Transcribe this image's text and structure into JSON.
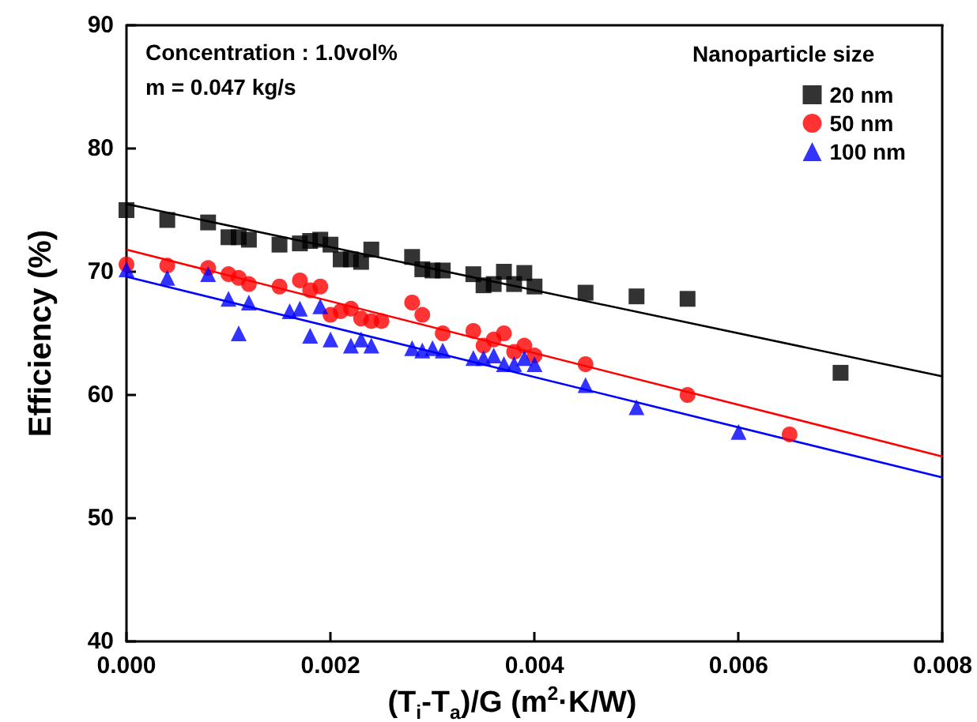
{
  "chart_data": {
    "type": "scatter",
    "xlabel": "(T$_{i}$-T$_{a}$)/G (m$^{2}$·K/W)",
    "ylabel": "Efficiency (%)",
    "legend_title": "Nanoparticle size",
    "annotations": [
      "Concentration : 1.0vol%",
      "m = 0.047 kg/s"
    ],
    "xlim": [
      0,
      0.008
    ],
    "xticks": [
      {
        "value": 0,
        "label": "0.000"
      },
      {
        "value": 0.002,
        "label": "0.002"
      },
      {
        "value": 0.004,
        "label": "0.004"
      },
      {
        "value": 0.006,
        "label": "0.006"
      },
      {
        "value": 0.008,
        "label": "0.008"
      }
    ],
    "ylim": [
      40,
      90
    ],
    "yticks": [
      40,
      50,
      60,
      70,
      80,
      90
    ],
    "grid": false,
    "legend": "top right",
    "series": [
      {
        "name": "20 nm",
        "color": "#000000",
        "marker": "square",
        "x": [
          0,
          0.0004,
          0.0008,
          0.001,
          0.0011,
          0.0012,
          0.0015,
          0.0017,
          0.0018,
          0.0019,
          0.002,
          0.0021,
          0.0022,
          0.0023,
          0.0024,
          0.0028,
          0.0029,
          0.003,
          0.0031,
          0.0034,
          0.0035,
          0.0036,
          0.0037,
          0.0038,
          0.0039,
          0.004,
          0.0045,
          0.005,
          0.0055,
          0.007
        ],
        "values": [
          75,
          74.2,
          74,
          72.8,
          72.8,
          72.6,
          72.2,
          72.3,
          72.5,
          72.6,
          72.2,
          71,
          71,
          70.8,
          71.8,
          71.2,
          70.2,
          70.1,
          70.1,
          69.8,
          68.9,
          69,
          70,
          69,
          69.9,
          68.8,
          68.3,
          68,
          67.8,
          61.8
        ]
      },
      {
        "name": "50 nm",
        "color": "#ff0000",
        "marker": "circle",
        "x": [
          0,
          0.0004,
          0.0008,
          0.001,
          0.0011,
          0.0012,
          0.0015,
          0.0017,
          0.0018,
          0.0019,
          0.002,
          0.0021,
          0.0022,
          0.0023,
          0.0024,
          0.0025,
          0.0028,
          0.0029,
          0.0031,
          0.0034,
          0.0035,
          0.0036,
          0.0037,
          0.0038,
          0.0039,
          0.004,
          0.0045,
          0.0055,
          0.0065
        ],
        "values": [
          70.6,
          70.5,
          70.3,
          69.8,
          69.5,
          69,
          68.8,
          69.3,
          68.5,
          68.8,
          66.5,
          66.8,
          67,
          66.2,
          66,
          66,
          67.5,
          66.5,
          65,
          65.2,
          64,
          64.5,
          65,
          63.5,
          64,
          63.2,
          62.5,
          60,
          56.8
        ]
      },
      {
        "name": "100 nm",
        "color": "#0000ff",
        "marker": "triangle",
        "x": [
          0,
          0.0004,
          0.0008,
          0.001,
          0.0011,
          0.0012,
          0.0016,
          0.0017,
          0.0018,
          0.0019,
          0.002,
          0.0022,
          0.0023,
          0.0024,
          0.0028,
          0.0029,
          0.003,
          0.0031,
          0.0034,
          0.0035,
          0.0036,
          0.0037,
          0.0038,
          0.0039,
          0.004,
          0.0045,
          0.005,
          0.006
        ],
        "values": [
          70.2,
          69.5,
          69.8,
          67.8,
          65,
          67.5,
          66.8,
          67,
          64.8,
          67.2,
          64.5,
          64,
          64.5,
          64,
          63.8,
          63.6,
          63.8,
          63.6,
          63,
          63,
          63.2,
          62.5,
          62.5,
          63,
          62.5,
          60.8,
          59,
          57
        ]
      },
      {
        "type": "line",
        "color": "#000000",
        "x": [
          0,
          0.008
        ],
        "values": [
          75.5,
          61.5
        ]
      },
      {
        "type": "line",
        "color": "#ff0000",
        "x": [
          0,
          0.008
        ],
        "values": [
          71.8,
          55
        ]
      },
      {
        "type": "line",
        "color": "#0000ff",
        "x": [
          0,
          0.008
        ],
        "values": [
          69.6,
          53.3
        ]
      }
    ]
  }
}
